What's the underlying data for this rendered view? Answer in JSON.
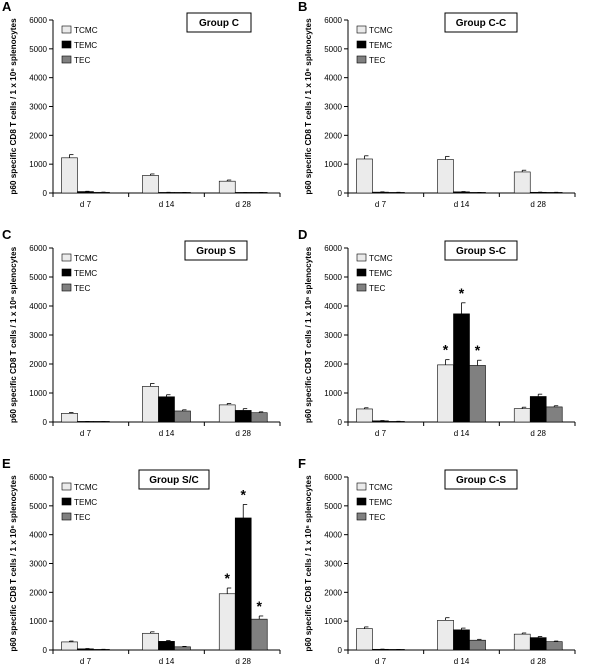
{
  "chart_data": [
    {
      "panel_letter": "A",
      "type": "bar",
      "title": "Group C",
      "ylabel": "p60 specific CD8 T cells / 1 x 10⁶ splenocytes",
      "xlabel": "",
      "ylim": [
        0,
        6000
      ],
      "yticks": [
        0,
        1000,
        2000,
        3000,
        4000,
        5000,
        6000
      ],
      "categories": [
        "d 7",
        "d 14",
        "d 28"
      ],
      "series": [
        {
          "name": "TCMC",
          "color": "#ebebeb",
          "values": [
            1220,
            610,
            410
          ],
          "errors": [
            110,
            50,
            40
          ]
        },
        {
          "name": "TEMC",
          "color": "#000000",
          "values": [
            50,
            20,
            10
          ],
          "errors": [
            10,
            5,
            5
          ]
        },
        {
          "name": "TEC",
          "color": "#808080",
          "values": [
            25,
            15,
            15
          ],
          "errors": [
            5,
            5,
            5
          ]
        }
      ],
      "annotations": [],
      "legend_position": "top-left",
      "grid": false
    },
    {
      "panel_letter": "B",
      "type": "bar",
      "title": "Group C-C",
      "ylabel": "p60 specific CD8 T cells / 1 x 10⁶ splenocytes",
      "xlabel": "",
      "ylim": [
        0,
        6000
      ],
      "yticks": [
        0,
        1000,
        2000,
        3000,
        4000,
        5000,
        6000
      ],
      "categories": [
        "d 7",
        "d 14",
        "d 28"
      ],
      "series": [
        {
          "name": "TCMC",
          "color": "#ebebeb",
          "values": [
            1180,
            1160,
            730
          ],
          "errors": [
            110,
            110,
            60
          ]
        },
        {
          "name": "TEMC",
          "color": "#000000",
          "values": [
            30,
            40,
            25
          ],
          "errors": [
            10,
            10,
            5
          ]
        },
        {
          "name": "TEC",
          "color": "#808080",
          "values": [
            20,
            15,
            20
          ],
          "errors": [
            5,
            5,
            5
          ]
        }
      ],
      "annotations": [],
      "legend_position": "top-left",
      "grid": false
    },
    {
      "panel_letter": "C",
      "type": "bar",
      "title": "Group S",
      "ylabel": "p60 specific CD8 T cells / 1 x 10⁶ splenocytes",
      "xlabel": "",
      "ylim": [
        0,
        6000
      ],
      "yticks": [
        0,
        1000,
        2000,
        3000,
        4000,
        5000,
        6000
      ],
      "categories": [
        "d 7",
        "d 14",
        "d 28"
      ],
      "series": [
        {
          "name": "TCMC",
          "color": "#ebebeb",
          "values": [
            300,
            1230,
            590
          ],
          "errors": [
            30,
            100,
            50
          ]
        },
        {
          "name": "TEMC",
          "color": "#000000",
          "values": [
            15,
            870,
            400
          ],
          "errors": [
            5,
            70,
            60
          ]
        },
        {
          "name": "TEC",
          "color": "#808080",
          "values": [
            10,
            380,
            320
          ],
          "errors": [
            5,
            40,
            30
          ]
        }
      ],
      "annotations": [],
      "legend_position": "top-left",
      "grid": false
    },
    {
      "panel_letter": "D",
      "type": "bar",
      "title": "Group S-C",
      "ylabel": "p60 specific CD8 T cells / 1 x 10⁶ splenocytes",
      "xlabel": "",
      "ylim": [
        0,
        6000
      ],
      "yticks": [
        0,
        1000,
        2000,
        3000,
        4000,
        5000,
        6000
      ],
      "categories": [
        "d 7",
        "d 14",
        "d 28"
      ],
      "series": [
        {
          "name": "TCMC",
          "color": "#ebebeb",
          "values": [
            450,
            1970,
            460
          ],
          "errors": [
            40,
            180,
            50
          ]
        },
        {
          "name": "TEMC",
          "color": "#000000",
          "values": [
            40,
            3730,
            880
          ],
          "errors": [
            10,
            380,
            80
          ]
        },
        {
          "name": "TEC",
          "color": "#808080",
          "values": [
            20,
            1950,
            520
          ],
          "errors": [
            5,
            180,
            40
          ]
        }
      ],
      "annotations": [
        {
          "text": "*",
          "category": 1,
          "series": 0
        },
        {
          "text": "*",
          "category": 1,
          "series": 1
        },
        {
          "text": "*",
          "category": 1,
          "series": 2
        }
      ],
      "legend_position": "top-left",
      "grid": false
    },
    {
      "panel_letter": "E",
      "type": "bar",
      "title": "Group S/C",
      "ylabel": "p60 specific CD8 T cells / 1 x 10⁶ splenocytes",
      "xlabel": "",
      "ylim": [
        0,
        6000
      ],
      "yticks": [
        0,
        1000,
        2000,
        3000,
        4000,
        5000,
        6000
      ],
      "categories": [
        "d 7",
        "d 14",
        "d 28"
      ],
      "series": [
        {
          "name": "TCMC",
          "color": "#ebebeb",
          "values": [
            280,
            580,
            1950
          ],
          "errors": [
            30,
            50,
            200
          ]
        },
        {
          "name": "TEMC",
          "color": "#000000",
          "values": [
            40,
            300,
            4580
          ],
          "errors": [
            10,
            30,
            470
          ]
        },
        {
          "name": "TEC",
          "color": "#808080",
          "values": [
            20,
            110,
            1070
          ],
          "errors": [
            5,
            15,
            110
          ]
        }
      ],
      "annotations": [
        {
          "text": "*",
          "category": 2,
          "series": 0
        },
        {
          "text": "*",
          "category": 2,
          "series": 1
        },
        {
          "text": "*",
          "category": 2,
          "series": 2
        }
      ],
      "legend_position": "top-left",
      "grid": false
    },
    {
      "panel_letter": "F",
      "type": "bar",
      "title": "Group C-S",
      "ylabel": "p60 specific CD8 T cells / 1 x 10⁶ splenocytes",
      "xlabel": "",
      "ylim": [
        0,
        6000
      ],
      "yticks": [
        0,
        1000,
        2000,
        3000,
        4000,
        5000,
        6000
      ],
      "categories": [
        "d 7",
        "d 14",
        "d 28"
      ],
      "series": [
        {
          "name": "TCMC",
          "color": "#ebebeb",
          "values": [
            740,
            1030,
            550
          ],
          "errors": [
            60,
            90,
            40
          ]
        },
        {
          "name": "TEMC",
          "color": "#000000",
          "values": [
            25,
            700,
            430
          ],
          "errors": [
            5,
            60,
            40
          ]
        },
        {
          "name": "TEC",
          "color": "#808080",
          "values": [
            15,
            340,
            290
          ],
          "errors": [
            5,
            30,
            20
          ]
        }
      ],
      "annotations": [],
      "legend_position": "top-left",
      "grid": false
    }
  ]
}
